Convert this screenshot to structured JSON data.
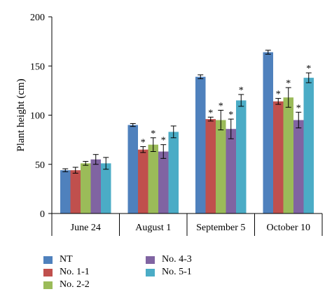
{
  "chart_data": {
    "type": "bar",
    "ylabel": "Plant height (cm)",
    "xlabel": "",
    "ylim": [
      0,
      200
    ],
    "yticks": [
      0,
      50,
      100,
      150,
      200
    ],
    "categories": [
      "June 24",
      "August 1",
      "September 5",
      "October 10"
    ],
    "grid": false,
    "legend_position": "bottom",
    "series": [
      {
        "name": "NT",
        "color": "#4F81BD",
        "values": [
          44,
          90,
          139,
          164
        ],
        "errors": [
          1.5,
          1.5,
          2,
          2
        ],
        "significance": [
          "",
          "",
          "",
          ""
        ]
      },
      {
        "name": "No. 1-1",
        "color": "#C0504D",
        "values": [
          44,
          65,
          96,
          114
        ],
        "errors": [
          3,
          3,
          2,
          3
        ],
        "significance": [
          "",
          "*",
          "*",
          "*"
        ]
      },
      {
        "name": "No. 2-2",
        "color": "#9BBB59",
        "values": [
          51,
          70,
          95,
          118
        ],
        "errors": [
          2,
          7,
          10,
          10
        ],
        "significance": [
          "",
          "*",
          "*",
          "*"
        ]
      },
      {
        "name": "No. 4-3",
        "color": "#8064A2",
        "values": [
          55,
          63,
          86,
          95
        ],
        "errors": [
          5,
          7,
          10,
          8
        ],
        "significance": [
          "",
          "*",
          "*",
          "*"
        ]
      },
      {
        "name": "No. 5-1",
        "color": "#4BACC6",
        "values": [
          51,
          83,
          115,
          138
        ],
        "errors": [
          6,
          6,
          6,
          5
        ],
        "significance": [
          "",
          "",
          "*",
          "*"
        ]
      }
    ]
  }
}
